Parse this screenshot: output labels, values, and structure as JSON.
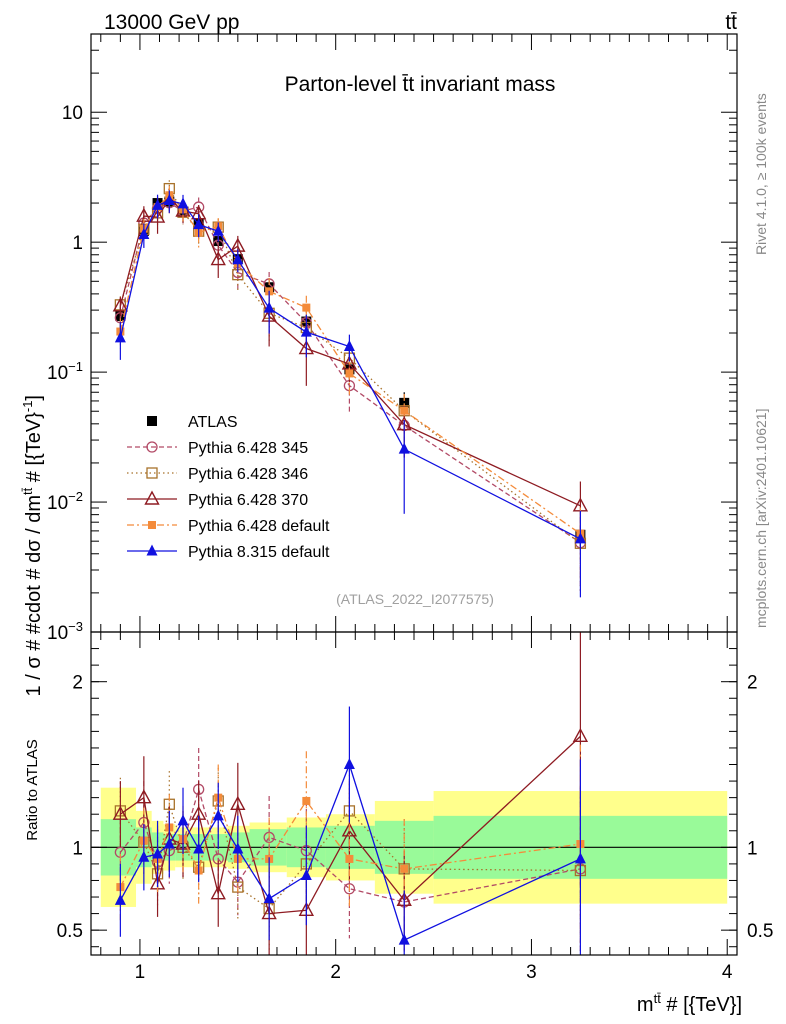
{
  "header": {
    "left": "13000 GeV pp",
    "right": "tt̄"
  },
  "side_text": {
    "rivet": "Rivet 4.1.0, ≥ 100k events",
    "mcplots": "mcplots.cern.ch [arXiv:2401.10621]"
  },
  "chart_data": {
    "type": "line",
    "title": "Parton-level t̄t invariant mass",
    "analysis_id": "(ATLAS_2022_I2077575)",
    "xlabel": "m^{tt̄} # [{TeV}]",
    "xlabel_parts": {
      "main": "m",
      "sup": "tt̄",
      "rest": " # [{TeV}]"
    },
    "ylabel": "1 / σ # #cdot # dσ / dm^{tt̄} # [{TeV}^{-1}]",
    "ylabel_parts": {
      "main": "1 / σ # #cdot # dσ / dm",
      "sup": "tt̄",
      "rest": " # [{TeV}",
      "sup2": "-1",
      "end": "]"
    },
    "ratio_ylabel": "Ratio to ATLAS",
    "xlim": [
      0.75,
      4.05
    ],
    "ylim": [
      0.001,
      40
    ],
    "ratio_ylim": [
      0.35,
      2.3
    ],
    "x_ticks": [
      1,
      2,
      3,
      4
    ],
    "x_tick_labels": [
      "1",
      "2",
      "3",
      "4"
    ],
    "y_ticks": [
      0.001,
      0.01,
      0.1,
      1,
      10
    ],
    "y_tick_labels": [
      {
        "base": "10",
        "exp": "−3"
      },
      {
        "base": "10",
        "exp": "−2"
      },
      {
        "base": "10",
        "exp": "−1"
      },
      {
        "base": "1",
        "exp": ""
      },
      {
        "base": "10",
        "exp": ""
      }
    ],
    "ratio_ticks": [
      0.5,
      1,
      2
    ],
    "ratio_tick_labels": [
      "0.5",
      "1",
      "2"
    ],
    "x": [
      0.9,
      1.02,
      1.09,
      1.15,
      1.22,
      1.3,
      1.4,
      1.5,
      1.66,
      1.85,
      2.07,
      2.35,
      3.25
    ],
    "bins": [
      [
        0.8,
        0.98
      ],
      [
        0.98,
        1.06
      ],
      [
        1.06,
        1.12
      ],
      [
        1.12,
        1.18
      ],
      [
        1.18,
        1.26
      ],
      [
        1.26,
        1.34
      ],
      [
        1.34,
        1.45
      ],
      [
        1.45,
        1.56
      ],
      [
        1.56,
        1.75
      ],
      [
        1.75,
        1.95
      ],
      [
        1.95,
        2.2
      ],
      [
        2.2,
        2.5
      ],
      [
        2.5,
        4.0
      ]
    ],
    "ratio_band_inner": [
      0.17,
      0.12,
      0.09,
      0.08,
      0.08,
      0.08,
      0.08,
      0.09,
      0.11,
      0.12,
      0.13,
      0.16,
      0.19
    ],
    "ratio_band_outer": [
      0.36,
      0.22,
      0.16,
      0.14,
      0.12,
      0.12,
      0.12,
      0.13,
      0.15,
      0.18,
      0.2,
      0.28,
      0.34
    ],
    "series": [
      {
        "name": "ATLAS",
        "color": "#000000",
        "marker": "square",
        "dash": "",
        "values": [
          0.27,
          1.22,
          2.0,
          2.05,
          1.7,
          1.38,
          1.02,
          0.74,
          0.45,
          0.245,
          0.105,
          0.058,
          0.0056
        ],
        "errors": [
          0.05,
          0.15,
          0.15,
          0.15,
          0.12,
          0.1,
          0.08,
          0.06,
          0.05,
          0.03,
          0.015,
          0.012,
          0.001
        ]
      },
      {
        "name": "Pythia 6.428 345",
        "color": "#b24a66",
        "marker": "circle-open",
        "dash": "5,3",
        "ratios": [
          0.97,
          1.15,
          0.91,
          0.98,
          1.02,
          1.35,
          0.93,
          0.79,
          1.06,
          0.98,
          0.75,
          0.67,
          0.87
        ],
        "ratio_errors": [
          0.2,
          0.25,
          0.2,
          0.2,
          0.2,
          0.25,
          0.2,
          0.2,
          0.25,
          0.3,
          0.3,
          0.3,
          0.5
        ]
      },
      {
        "name": "Pythia 6.428 346",
        "color": "#a8722b",
        "marker": "square-open",
        "dash": "1.5,3",
        "ratios": [
          1.22,
          1.03,
          0.84,
          1.26,
          1.0,
          0.88,
          1.28,
          0.76,
          0.63,
          0.9,
          1.22,
          0.87,
          0.86
        ],
        "ratio_errors": [
          0.2,
          0.2,
          0.2,
          0.2,
          0.2,
          0.2,
          0.2,
          0.2,
          0.25,
          0.3,
          0.3,
          0.3,
          0.5
        ]
      },
      {
        "name": "Pythia 6.428 370",
        "color": "#8e1b22",
        "marker": "triangle-open",
        "dash": "",
        "ratios": [
          1.2,
          1.3,
          0.78,
          1.05,
          1.02,
          1.2,
          0.72,
          1.26,
          0.6,
          0.62,
          1.1,
          0.68,
          1.67
        ],
        "ratio_errors": [
          0.2,
          0.25,
          0.2,
          0.2,
          0.2,
          0.2,
          0.2,
          0.25,
          0.25,
          0.3,
          0.3,
          0.3,
          0.9
        ]
      },
      {
        "name": "Pythia 6.428 default",
        "color": "#f48b3a",
        "marker": "square-small",
        "dash": "7,3,2,3",
        "ratios": [
          0.76,
          1.04,
          0.93,
          1.12,
          1.05,
          0.86,
          1.3,
          0.93,
          0.93,
          1.28,
          0.93,
          0.87,
          1.02
        ],
        "ratio_errors": [
          0.2,
          0.2,
          0.2,
          0.2,
          0.2,
          0.2,
          0.2,
          0.2,
          0.25,
          0.3,
          0.3,
          0.3,
          0.6
        ]
      },
      {
        "name": "Pythia 8.315 default",
        "color": "#1010e0",
        "marker": "triangle",
        "dash": "",
        "ratios": [
          0.68,
          0.94,
          0.96,
          1.02,
          1.16,
          0.99,
          1.19,
          0.99,
          0.69,
          0.83,
          1.5,
          0.44,
          0.93
        ],
        "ratio_errors": [
          0.22,
          0.2,
          0.2,
          0.2,
          0.2,
          0.2,
          0.2,
          0.2,
          0.25,
          0.3,
          0.35,
          0.3,
          0.6
        ]
      }
    ]
  }
}
